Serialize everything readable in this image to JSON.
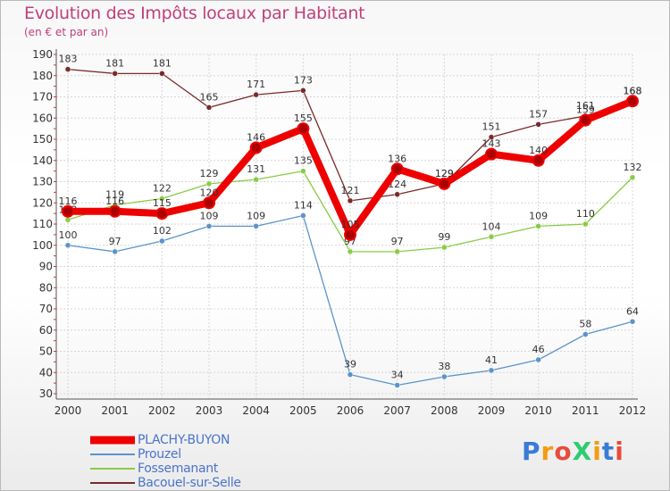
{
  "chart_data": {
    "type": "line",
    "title": "Evolution des Impôts locaux par Habitant",
    "subtitle": "(en € et par an)",
    "x": [
      "2000",
      "2001",
      "2002",
      "2003",
      "2004",
      "2005",
      "2006",
      "2007",
      "2008",
      "2009",
      "2010",
      "2011",
      "2012"
    ],
    "y_ticks": [
      30,
      40,
      50,
      60,
      70,
      80,
      90,
      100,
      110,
      120,
      130,
      140,
      150,
      160,
      170,
      180,
      190
    ],
    "ylim": [
      30,
      190
    ],
    "grid": true,
    "legend_position": "bottom-left",
    "series": [
      {
        "name": "Bacouel-sur-Selle",
        "color": "#7a2a2a",
        "values": [
          183,
          181,
          181,
          165,
          171,
          173,
          121,
          124,
          129,
          151,
          157,
          161,
          168
        ],
        "labels": [
          "183",
          "181",
          "181",
          "165",
          "171",
          "173",
          "121",
          "124",
          "129",
          "151",
          "157",
          "161",
          "168"
        ]
      },
      {
        "name": "Fossemanant",
        "color": "#88cc44",
        "values": [
          112,
          119,
          122,
          129,
          131,
          135,
          97,
          97,
          99,
          104,
          109,
          110,
          132
        ],
        "labels": [
          "112",
          "119",
          "122",
          "129",
          "131",
          "135",
          "97",
          "97",
          "99",
          "104",
          "109",
          "110",
          "132"
        ]
      },
      {
        "name": "Prouzel",
        "color": "#5b94c8",
        "values": [
          100,
          97,
          102,
          109,
          109,
          114,
          39,
          34,
          38,
          41,
          46,
          58,
          64
        ],
        "labels": [
          "100",
          "97",
          "102",
          "109",
          "109",
          "114",
          "39",
          "34",
          "38",
          "41",
          "46",
          "58",
          "64"
        ]
      },
      {
        "name": "PLACHY-BUYON",
        "color": "#ee0000",
        "values": [
          116,
          116,
          115,
          120,
          146,
          155,
          105,
          136,
          129,
          143,
          140,
          159,
          168
        ],
        "labels": [
          "116",
          "116",
          "115",
          "120",
          "146",
          "155",
          "105",
          "136",
          "129",
          "143",
          "140",
          "159",
          "168"
        ]
      }
    ],
    "legend": [
      "PLACHY-BUYON",
      "Prouzel",
      "Fossemanant",
      "Bacouel-sur-Selle"
    ]
  },
  "logo_text": "ProXiti"
}
